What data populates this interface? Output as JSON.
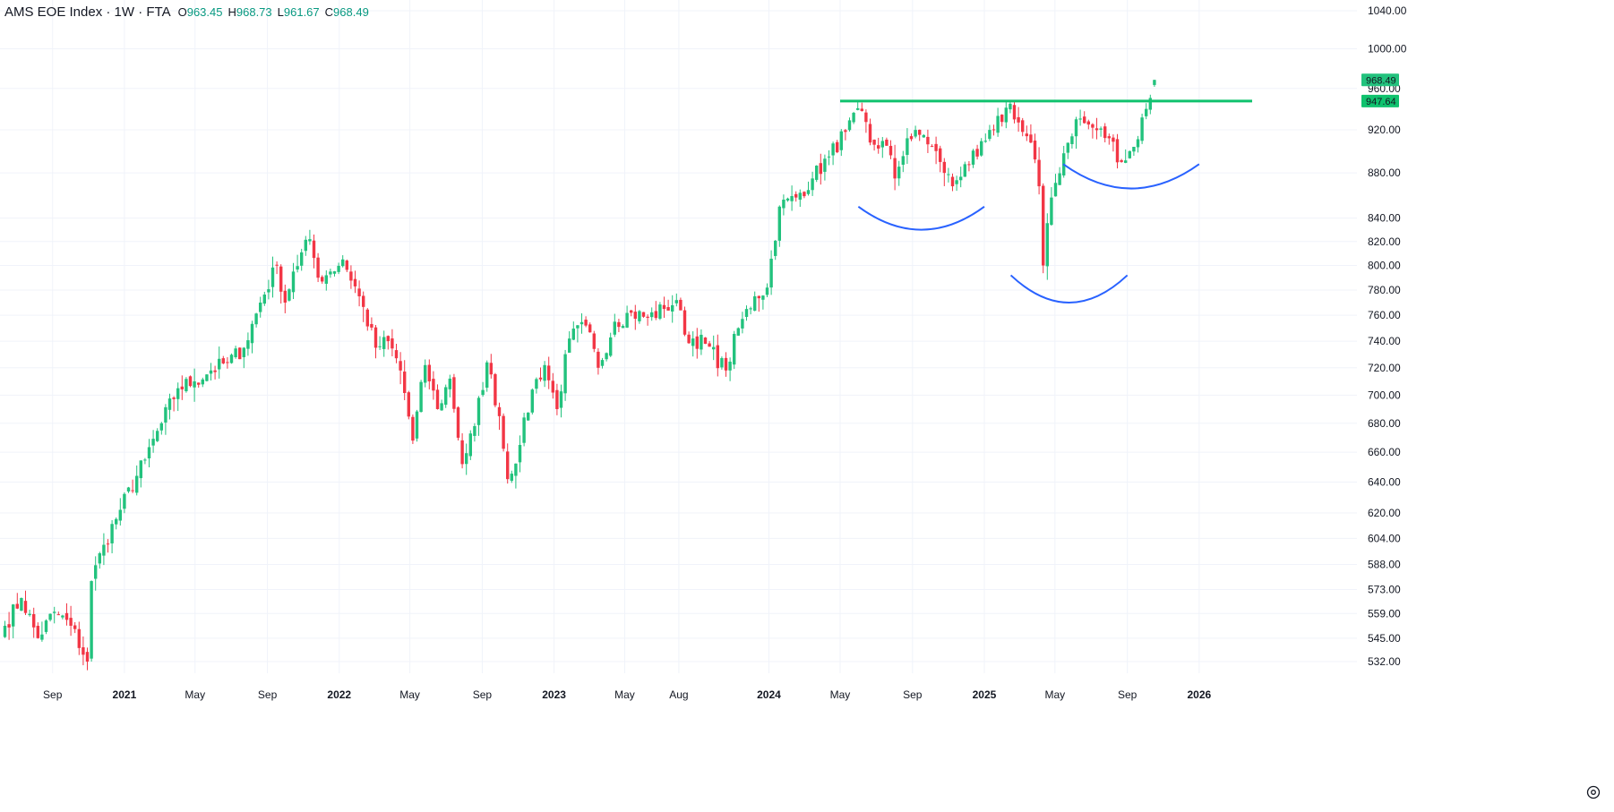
{
  "header": {
    "symbol": "AMS EOE Index · 1W · FTA",
    "open_label": "O",
    "open": "963.45",
    "high_label": "H",
    "high": "968.73",
    "low_label": "L",
    "low": "961.67",
    "close_label": "C",
    "close": "968.49"
  },
  "colors": {
    "up": "#22c27d",
    "down": "#f23645",
    "resistance": "#10c26e",
    "arcs": "#2962ff",
    "grid": "#f0f3fa",
    "text": "#131722"
  },
  "icons": {
    "settings": "gear-icon"
  },
  "chart_data": {
    "type": "candlestick",
    "interval": "1W",
    "scale": "log",
    "grid": true,
    "ylim": [
      522,
      1055
    ],
    "y_ticks": [
      "1040.00",
      "1000.00",
      "960.00",
      "920.00",
      "880.00",
      "840.00",
      "820.00",
      "800.00",
      "780.00",
      "760.00",
      "740.00",
      "720.00",
      "700.00",
      "680.00",
      "660.00",
      "640.00",
      "620.00",
      "604.00",
      "588.00",
      "573.00",
      "559.00",
      "545.00",
      "532.00"
    ],
    "x_ticks": [
      {
        "label": "Sep",
        "date": "2020-09-01",
        "bold": false
      },
      {
        "label": "2021",
        "date": "2021-01-01",
        "bold": true
      },
      {
        "label": "May",
        "date": "2021-05-01",
        "bold": false
      },
      {
        "label": "Sep",
        "date": "2021-09-01",
        "bold": false
      },
      {
        "label": "2022",
        "date": "2022-01-01",
        "bold": true
      },
      {
        "label": "May",
        "date": "2022-05-01",
        "bold": false
      },
      {
        "label": "Sep",
        "date": "2022-09-01",
        "bold": false
      },
      {
        "label": "2023",
        "date": "2023-01-01",
        "bold": true
      },
      {
        "label": "May",
        "date": "2023-05-01",
        "bold": false
      },
      {
        "label": "Aug",
        "date": "2023-08-01",
        "bold": false
      },
      {
        "label": "2024",
        "date": "2024-01-01",
        "bold": true
      },
      {
        "label": "May",
        "date": "2024-05-01",
        "bold": false
      },
      {
        "label": "Sep",
        "date": "2024-09-01",
        "bold": false
      },
      {
        "label": "2025",
        "date": "2025-01-01",
        "bold": true
      },
      {
        "label": "May",
        "date": "2025-05-01",
        "bold": false
      },
      {
        "label": "Sep",
        "date": "2025-09-01",
        "bold": false
      },
      {
        "label": "2026",
        "date": "2026-01-01",
        "bold": true
      }
    ],
    "price_badges": [
      {
        "value": "968.49",
        "color": "#22c27d"
      },
      {
        "value": "947.64",
        "color": "#10c26e"
      }
    ],
    "anchors": [
      [
        "2020-06-12",
        552
      ],
      [
        "2020-07-10",
        568
      ],
      [
        "2020-08-07",
        545
      ],
      [
        "2020-09-04",
        560
      ],
      [
        "2020-10-02",
        552
      ],
      [
        "2020-10-30",
        532
      ],
      [
        "2020-11-06",
        578
      ],
      [
        "2020-11-27",
        600
      ],
      [
        "2020-12-25",
        622
      ],
      [
        "2021-02-05",
        655
      ],
      [
        "2021-03-05",
        680
      ],
      [
        "2021-04-02",
        705
      ],
      [
        "2021-04-30",
        710
      ],
      [
        "2021-05-28",
        718
      ],
      [
        "2021-06-25",
        724
      ],
      [
        "2021-07-23",
        735
      ],
      [
        "2021-08-20",
        770
      ],
      [
        "2021-09-17",
        800
      ],
      [
        "2021-10-01",
        770
      ],
      [
        "2021-10-15",
        795
      ],
      [
        "2021-11-12",
        822
      ],
      [
        "2021-11-26",
        790
      ],
      [
        "2021-12-17",
        795
      ],
      [
        "2022-01-07",
        805
      ],
      [
        "2022-02-04",
        775
      ],
      [
        "2022-03-04",
        735
      ],
      [
        "2022-03-25",
        740
      ],
      [
        "2022-04-15",
        718
      ],
      [
        "2022-05-06",
        668
      ],
      [
        "2022-05-27",
        722
      ],
      [
        "2022-06-17",
        690
      ],
      [
        "2022-07-08",
        712
      ],
      [
        "2022-07-29",
        652
      ],
      [
        "2022-08-19",
        678
      ],
      [
        "2022-09-09",
        724
      ],
      [
        "2022-09-30",
        685
      ],
      [
        "2022-10-14",
        642
      ],
      [
        "2022-11-04",
        665
      ],
      [
        "2022-11-25",
        704
      ],
      [
        "2022-12-16",
        722
      ],
      [
        "2023-01-06",
        690
      ],
      [
        "2023-01-27",
        742
      ],
      [
        "2023-02-24",
        752
      ],
      [
        "2023-03-17",
        720
      ],
      [
        "2023-04-14",
        755
      ],
      [
        "2023-05-12",
        762
      ],
      [
        "2023-06-09",
        758
      ],
      [
        "2023-07-07",
        765
      ],
      [
        "2023-07-28",
        772
      ],
      [
        "2023-08-11",
        745
      ],
      [
        "2023-09-15",
        738
      ],
      [
        "2023-10-20",
        718
      ],
      [
        "2023-11-10",
        750
      ],
      [
        "2023-12-08",
        775
      ],
      [
        "2023-12-29",
        782
      ],
      [
        "2024-01-19",
        850
      ],
      [
        "2024-02-16",
        858
      ],
      [
        "2024-03-15",
        875
      ],
      [
        "2024-04-12",
        895
      ],
      [
        "2024-05-10",
        918
      ],
      [
        "2024-06-07",
        938
      ],
      [
        "2024-06-21",
        908
      ],
      [
        "2024-07-19",
        905
      ],
      [
        "2024-08-02",
        875
      ],
      [
        "2024-08-23",
        912
      ],
      [
        "2024-09-20",
        915
      ],
      [
        "2024-10-18",
        890
      ],
      [
        "2024-11-08",
        868
      ],
      [
        "2024-11-29",
        888
      ],
      [
        "2024-12-20",
        895
      ],
      [
        "2025-01-17",
        920
      ],
      [
        "2025-02-14",
        945
      ],
      [
        "2025-03-07",
        918
      ],
      [
        "2025-03-21",
        908
      ],
      [
        "2025-04-04",
        868
      ],
      [
        "2025-04-11",
        800
      ],
      [
        "2025-04-25",
        858
      ],
      [
        "2025-05-16",
        898
      ],
      [
        "2025-06-06",
        930
      ],
      [
        "2025-07-04",
        922
      ],
      [
        "2025-08-01",
        912
      ],
      [
        "2025-08-22",
        890
      ],
      [
        "2025-09-12",
        904
      ],
      [
        "2025-10-03",
        940
      ],
      [
        "2025-10-17",
        968.49
      ]
    ],
    "drawings": {
      "resistance_line": {
        "value": 947.64,
        "from": "2024-05-01",
        "to": "2026-04-01"
      },
      "arcs": [
        {
          "from": "2024-06-01",
          "to": "2025-01-01",
          "ends": 850,
          "bottom": 830
        },
        {
          "from": "2025-02-15",
          "to": "2025-09-01",
          "ends": 792,
          "bottom": 770
        },
        {
          "from": "2025-05-15",
          "to": "2026-01-01",
          "ends": 888,
          "bottom": 866
        }
      ]
    }
  }
}
